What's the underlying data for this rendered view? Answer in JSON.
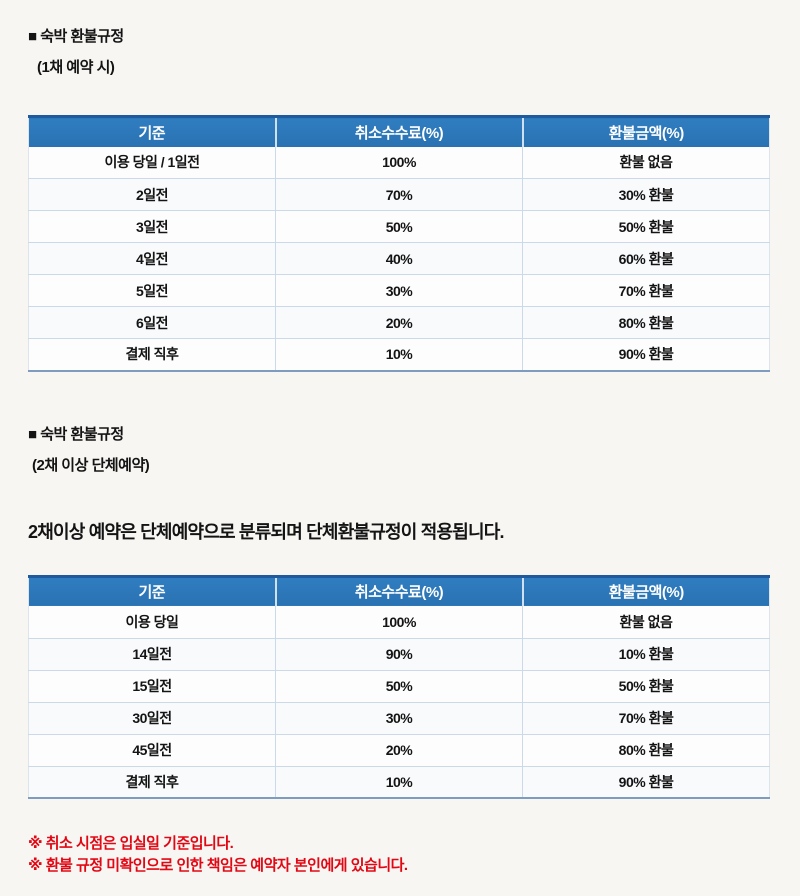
{
  "section1": {
    "title": "■ 숙박 환불규정",
    "subtitle": "(1채 예약 시)"
  },
  "table1": {
    "headers": [
      "기준",
      "취소수수료(%)",
      "환불금액(%)"
    ],
    "rows": [
      [
        "이용 당일 / 1일전",
        "100%",
        "환불 없음"
      ],
      [
        "2일전",
        "70%",
        "30% 환불"
      ],
      [
        "3일전",
        "50%",
        "50% 환불"
      ],
      [
        "4일전",
        "40%",
        "60% 환불"
      ],
      [
        "5일전",
        "30%",
        "70% 환불"
      ],
      [
        "6일전",
        "20%",
        "80% 환불"
      ],
      [
        "결제 직후",
        "10%",
        "90% 환불"
      ]
    ]
  },
  "section2": {
    "title": "■ 숙박 환불규정",
    "subtitle": "(2채 이상 단체예약)",
    "description": "2채이상 예약은 단체예약으로 분류되며 단체환불규정이 적용됩니다."
  },
  "table2": {
    "headers": [
      "기준",
      "취소수수료(%)",
      "환불금액(%)"
    ],
    "rows": [
      [
        "이용 당일",
        "100%",
        "환불 없음"
      ],
      [
        "14일전",
        "90%",
        "10% 환불"
      ],
      [
        "15일전",
        "50%",
        "50% 환불"
      ],
      [
        "30일전",
        "30%",
        "70% 환불"
      ],
      [
        "45일전",
        "20%",
        "80% 환불"
      ],
      [
        "결제 직후",
        "10%",
        "90% 환불"
      ]
    ]
  },
  "notes": {
    "line1": "※ 취소 시점은 입실일 기준입니다.",
    "line2": "※ 환불 규정 미확인으로 인한 책임은 예약자 본인에게 있습니다."
  },
  "colors": {
    "header_bg": "#2f7dc0",
    "header_bg_dark": "#2a72b2",
    "header_top_border": "#1e5b9e",
    "row_sep": "#ccd9e8",
    "table_bottom": "#7d9cc0",
    "note_color": "#e30613",
    "page_bg": "#f7f6f3"
  }
}
